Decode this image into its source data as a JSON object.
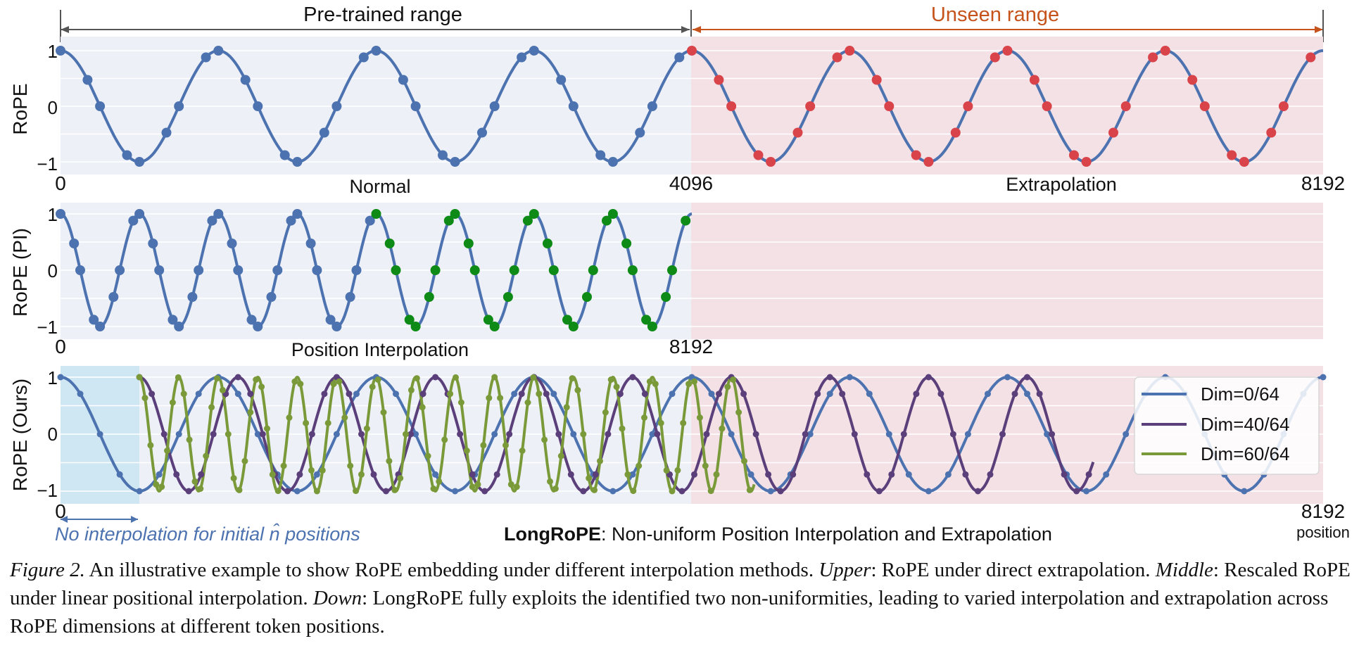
{
  "colors": {
    "blue": "#4c72b0",
    "red": "#d9434a",
    "green": "#0e8a16",
    "purple": "#5b3f7a",
    "olive": "#7a9a3a",
    "panel_bg": "#eef0f8",
    "unseen_bg": "#f3e1e6",
    "initial_bg": "#cfe6f3",
    "pretrained_arrow": "#555555",
    "unseen_arrow": "#c5531b"
  },
  "annotations": {
    "pretrained_range": "Pre-trained range",
    "unseen_range": "Unseen range",
    "initial_note": "No interpolation for initial n̂ positions",
    "longrope_bold": "LongRoPE",
    "longrope_rest": ": Non-uniform Position Interpolation and Extrapolation",
    "position_label": "position"
  },
  "chart_data": [
    {
      "type": "line",
      "ylabel": "RoPE",
      "xlim": [
        0,
        8192
      ],
      "ylim": [
        -1,
        1
      ],
      "yticks": [
        "1",
        "0",
        "−1"
      ],
      "xticks": [
        "0",
        "4096",
        "8192"
      ],
      "section_labels": [
        "Normal",
        "Extrapolation"
      ],
      "series": [
        {
          "color": "blue",
          "wave_period": 1024,
          "x_range": [
            0,
            8192
          ]
        }
      ],
      "markers": [
        {
          "color": "blue",
          "x_range": [
            0,
            4096
          ],
          "step": 128
        },
        {
          "color": "red",
          "x_range": [
            4096,
            8192
          ],
          "step": 128
        }
      ]
    },
    {
      "type": "line",
      "ylabel": "RoPE (PI)",
      "xlim": [
        0,
        8192
      ],
      "ylim": [
        -1,
        1
      ],
      "yticks": [
        "1",
        "0",
        "−1"
      ],
      "xticks": [
        "0",
        "8192"
      ],
      "section_labels": [
        "Position Interpolation"
      ],
      "series": [
        {
          "color": "blue",
          "wave_period": 512,
          "x_range": [
            0,
            4096
          ]
        }
      ],
      "markers": [
        {
          "color": "blue",
          "x_range": [
            0,
            2048
          ],
          "step": 64
        },
        {
          "color": "green",
          "x_range": [
            2048,
            4096
          ],
          "step": 64
        }
      ]
    },
    {
      "type": "line",
      "ylabel": "RoPE (Ours)",
      "xlim": [
        0,
        8192
      ],
      "ylim": [
        -1,
        1
      ],
      "yticks": [
        "1",
        "0",
        "−1"
      ],
      "xticks": [
        "0",
        "8192"
      ],
      "initial_region": [
        0,
        512
      ],
      "series": [
        {
          "name": "Dim=0/64",
          "color": "blue",
          "wave_period": 1024,
          "x_range": [
            0,
            8192
          ],
          "marker_step": 128
        },
        {
          "name": "Dim=40/64",
          "color": "purple",
          "wave_period": 640,
          "x_range": [
            512,
            6700
          ],
          "marker_step": 80
        },
        {
          "name": "Dim=60/64",
          "color": "olive",
          "wave_period": 256,
          "x_range": [
            512,
            4500
          ],
          "marker_step": 36
        }
      ]
    }
  ]
}
